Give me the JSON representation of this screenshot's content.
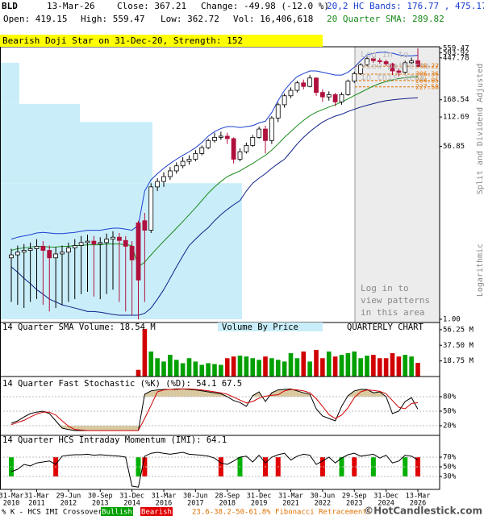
{
  "header": {
    "symbol": "BLD",
    "date": "13-Mar-26",
    "close": "Close: 367.21",
    "change": "Change: -49.98 (-12.0 %)",
    "bands": "20,2 HC Bands: 176.77 , 475.17",
    "open": "Open: 419.15",
    "high": "High: 559.47",
    "low": "Low: 362.72",
    "volume": "Vol: 16,406,618",
    "sma": "20 Quarter SMA: 289.82",
    "banner": "Bearish Doji Star on 31-Dec-20, Strength: 152"
  },
  "notice": [
    "Log in to",
    "view patterns",
    "in this area"
  ],
  "side_labels": [
    "Split and Dividend Adjusted",
    "Logarithmic"
  ],
  "footer": {
    "crossover": "% K - HCS IMI Crossover:",
    "bullish": "Bullish",
    "bearish": "Bearish",
    "fibonacci": "23.6-38.2-50-61.8% Fibonacci Retracements",
    "credit": "©HotCandlestick.com"
  },
  "chart_data": [
    {
      "type": "candlestick",
      "categories": [
        "31-Mar",
        null,
        null,
        null,
        "31-Mar",
        null,
        null,
        null,
        null,
        "29-Jun",
        null,
        null,
        null,
        null,
        "30-Sep",
        null,
        null,
        null,
        null,
        "31-Dec",
        null,
        null,
        null,
        null,
        "31-Mar",
        null,
        null,
        null,
        null,
        "30-Jun",
        null,
        null,
        null,
        null,
        "28-Sep",
        null,
        null,
        null,
        null,
        "31-Dec",
        null,
        null,
        null,
        null,
        "31-Mar",
        null,
        null,
        null,
        null,
        "30-Jun",
        null,
        null,
        null,
        null,
        "29-Sep",
        null,
        null,
        null,
        null,
        "31-Dec",
        null,
        null,
        null,
        null,
        "13-Mar"
      ],
      "category_years": [
        "2010",
        null,
        null,
        null,
        "2011",
        null,
        null,
        null,
        null,
        "2012",
        null,
        null,
        null,
        null,
        "2013",
        null,
        null,
        null,
        null,
        "2014",
        null,
        null,
        null,
        null,
        "2016",
        null,
        null,
        null,
        null,
        "2017",
        null,
        null,
        null,
        null,
        "2018",
        null,
        null,
        null,
        null,
        "2019",
        null,
        null,
        null,
        null,
        "2021",
        null,
        null,
        null,
        null,
        "2022",
        null,
        null,
        null,
        null,
        "2023",
        null,
        null,
        null,
        null,
        "2024",
        null,
        null,
        null,
        null,
        "2026"
      ],
      "open": [
        4.2,
        4.5,
        4.8,
        5.0,
        5.2,
        5.5,
        5.0,
        4.2,
        4.6,
        4.8,
        5.3,
        5.6,
        6.0,
        6.2,
        5.8,
        6.0,
        6.5,
        6.8,
        6.3,
        5.5,
        9.5,
        10,
        8,
        22,
        25,
        28,
        32,
        36,
        40,
        42,
        48,
        55,
        65,
        70,
        72,
        68,
        42,
        50,
        58,
        70,
        85,
        65,
        110,
        150,
        185,
        210,
        250,
        230,
        280,
        200,
        180,
        190,
        160,
        190,
        260,
        310,
        380,
        440,
        420,
        410,
        390,
        330,
        320,
        400,
        419.15
      ],
      "high": [
        5.2,
        5.6,
        5.8,
        6.0,
        6.5,
        6.2,
        5.6,
        5.4,
        5.6,
        6.0,
        6.5,
        7.0,
        7.2,
        7.0,
        6.8,
        7.4,
        7.8,
        7.5,
        7.0,
        6.2,
        10,
        12,
        24,
        27,
        31,
        35,
        39,
        44,
        46,
        52,
        58,
        68,
        78,
        80,
        78,
        70,
        54,
        62,
        74,
        90,
        92,
        115,
        158,
        195,
        225,
        262,
        270,
        300,
        285,
        215,
        205,
        198,
        200,
        270,
        325,
        395,
        460,
        455,
        445,
        430,
        400,
        350,
        420,
        450,
        559.47
      ],
      "low": [
        1.5,
        1.4,
        1.3,
        1.5,
        1.6,
        1.4,
        1.2,
        1.3,
        1.4,
        1.5,
        1.6,
        1.8,
        1.9,
        1.7,
        1.6,
        1.8,
        2.0,
        1.5,
        1.2,
        1.1,
        1.0,
        1.5,
        7.5,
        20,
        22,
        26,
        30,
        34,
        37,
        40,
        46,
        53,
        62,
        66,
        60,
        38,
        40,
        48,
        56,
        68,
        48,
        60,
        100,
        140,
        175,
        200,
        215,
        225,
        185,
        160,
        165,
        145,
        150,
        185,
        250,
        300,
        370,
        400,
        390,
        370,
        300,
        290,
        310,
        390,
        362.72
      ],
      "close": [
        4.5,
        4.8,
        5.0,
        5.2,
        5.5,
        5.0,
        4.2,
        4.6,
        4.8,
        5.3,
        5.6,
        6.0,
        6.2,
        5.8,
        6.0,
        6.5,
        6.8,
        6.3,
        5.5,
        4.0,
        2.5,
        8,
        22,
        25,
        28,
        32,
        36,
        40,
        42,
        48,
        55,
        65,
        70,
        72,
        68,
        42,
        50,
        58,
        70,
        85,
        65,
        110,
        150,
        185,
        210,
        250,
        230,
        280,
        200,
        180,
        190,
        160,
        190,
        260,
        310,
        380,
        440,
        420,
        410,
        390,
        330,
        320,
        400,
        417.19,
        367.21
      ],
      "up_color": "#ffffff",
      "down_color": "#b0103c",
      "ylim": [
        1,
        559.47
      ],
      "log_scale": true,
      "yticks": [
        559.47,
        503.92,
        447.78,
        168.54,
        112.69,
        56.85,
        {
          "value": 1,
          "label": "1.00"
        }
      ],
      "fib_levels": [
        368.22,
        306.36,
        264.05,
        227.58
      ],
      "fib_color": "#e07000",
      "overlays": [
        {
          "color": "#1a3fd0",
          "values": [
            6.5,
            6.8,
            7.0,
            7.2,
            7.5,
            7.6,
            7.5,
            7.4,
            7.4,
            7.5,
            7.6,
            7.8,
            8.0,
            8.0,
            8.0,
            8.2,
            8.4,
            8.4,
            8.2,
            8.0,
            9,
            20,
            26,
            30,
            34,
            38,
            42,
            46,
            50,
            55,
            62,
            72,
            80,
            86,
            90,
            90,
            88,
            90,
            92,
            98,
            102,
            125,
            165,
            210,
            250,
            290,
            310,
            330,
            330,
            320,
            310,
            300,
            300,
            320,
            360,
            420,
            480,
            500,
            510,
            510,
            500,
            480,
            470,
            470,
            475.17
          ]
        },
        {
          "color": "#10208a",
          "values": [
            3.4,
            3.0,
            2.6,
            2.3,
            2.0,
            1.8,
            1.6,
            1.5,
            1.4,
            1.35,
            1.3,
            1.25,
            1.2,
            1.2,
            1.18,
            1.15,
            1.12,
            1.1,
            1.1,
            1.1,
            1.1,
            1.15,
            1.3,
            1.6,
            2,
            2.6,
            3.4,
            4.4,
            5.6,
            6.5,
            7.5,
            8.5,
            10,
            11.5,
            13,
            14.5,
            16,
            20,
            24,
            27,
            30,
            34,
            38,
            42,
            50,
            60,
            70,
            80,
            90,
            100,
            108,
            115,
            120,
            128,
            135,
            142,
            148,
            154,
            160,
            165,
            168,
            171,
            173,
            175,
            176.77
          ]
        },
        {
          "color": "#1a8a1a",
          "values": [
            5.0,
            5.2,
            5.3,
            5.4,
            5.5,
            5.5,
            5.4,
            5.4,
            5.5,
            5.5,
            5.6,
            5.6,
            5.7,
            5.7,
            5.7,
            5.8,
            5.8,
            5.8,
            5.7,
            5.6,
            3.4,
            3.8,
            4.5,
            5.3,
            6.2,
            7.2,
            8.4,
            9.8,
            11.5,
            13.5,
            16,
            19,
            22,
            25,
            28,
            30,
            32,
            35,
            38,
            42,
            46,
            52,
            60,
            70,
            80,
            92,
            104,
            116,
            126,
            134,
            142,
            150,
            160,
            172,
            186,
            200,
            216,
            232,
            246,
            258,
            268,
            276,
            282,
            286,
            289.82
          ]
        }
      ],
      "volume_by_price": {
        "bins": [
          1,
          24,
          100,
          153,
          400
        ],
        "values": [
          100,
          63,
          33,
          8
        ],
        "color": "#c9eef9"
      }
    },
    {
      "type": "bar",
      "title": "14 Quarter SMA Volume: 18.54 M",
      "label": "Volume By Price",
      "chart_label": "QUARTERLY CHART",
      "values": [
        null,
        null,
        null,
        null,
        null,
        null,
        null,
        null,
        null,
        null,
        null,
        null,
        null,
        null,
        null,
        null,
        null,
        null,
        null,
        null,
        8,
        57,
        30,
        22,
        18,
        26,
        20,
        16,
        22,
        18,
        14,
        16,
        15,
        14,
        22,
        24,
        25,
        24,
        22,
        20,
        24,
        22,
        20,
        18,
        28,
        22,
        30,
        18,
        32,
        22,
        30,
        24,
        26,
        28,
        30,
        22,
        25,
        26,
        22,
        22,
        28,
        24,
        26,
        24,
        16.41
      ],
      "up_color": "#00a000",
      "down_color": "#d00000",
      "ylim": [
        0,
        60
      ],
      "yticks": [
        {
          "value": 56.25,
          "label": "56.25 M"
        },
        {
          "value": 37.5,
          "label": "37.50 M"
        },
        {
          "value": 18.75,
          "label": "18.75 M"
        }
      ]
    },
    {
      "type": "line",
      "title": "14 Quarter Fast Stochastic (%K) (%D): 54.1 67.5",
      "series": [
        {
          "color": "#000000",
          "values": [
            25,
            30,
            38,
            45,
            48,
            50,
            45,
            30,
            15,
            12,
            10,
            10,
            10,
            10,
            10,
            10,
            10,
            10,
            10,
            10,
            10,
            85,
            92,
            94,
            95,
            95,
            96,
            96,
            95,
            94,
            92,
            90,
            88,
            86,
            80,
            72,
            68,
            60,
            82,
            90,
            70,
            88,
            94,
            95,
            96,
            92,
            88,
            85,
            55,
            40,
            35,
            30,
            60,
            82,
            92,
            95,
            95,
            88,
            90,
            80,
            45,
            50,
            70,
            78,
            54.1
          ]
        },
        {
          "color": "#d00000",
          "values": [
            22,
            27,
            31,
            38,
            44,
            48,
            48,
            42,
            30,
            19,
            12,
            11,
            10,
            10,
            10,
            10,
            10,
            10,
            10,
            10,
            10,
            35,
            62,
            90,
            94,
            95,
            95,
            96,
            96,
            95,
            94,
            92,
            90,
            88,
            85,
            79,
            73,
            67,
            70,
            77,
            81,
            83,
            84,
            92,
            95,
            94,
            92,
            88,
            76,
            60,
            43,
            35,
            42,
            57,
            78,
            90,
            94,
            93,
            91,
            86,
            72,
            58,
            55,
            66,
            67.5
          ]
        }
      ],
      "zone_color": "#d9c9a0",
      "grid": true,
      "ylim": [
        0,
        100
      ],
      "yticks": [
        {
          "value": 80,
          "label": "80%"
        },
        {
          "value": 50,
          "label": "50%"
        },
        {
          "value": 20,
          "label": "20%"
        }
      ]
    },
    {
      "type": "line",
      "title": "14 Quarter HCS Intraday Momentum (IMI): 64.1",
      "series": [
        {
          "color": "#000000",
          "values": [
            40,
            45,
            55,
            52,
            58,
            60,
            62,
            55,
            72,
            74,
            75,
            75,
            76,
            74,
            75,
            74,
            73,
            72,
            70,
            10,
            8,
            72,
            78,
            80,
            78,
            76,
            78,
            80,
            76,
            75,
            74,
            72,
            68,
            58,
            55,
            62,
            70,
            72,
            60,
            74,
            58,
            70,
            75,
            78,
            64,
            72,
            76,
            74,
            55,
            62,
            70,
            58,
            68,
            75,
            78,
            72,
            74,
            76,
            68,
            74,
            58,
            62,
            74,
            72,
            64.1
          ]
        }
      ],
      "bullish": [
        0,
        20,
        36,
        52,
        57,
        62
      ],
      "bullish_color": "#00b000",
      "bearish": [
        7,
        21,
        33,
        40,
        42,
        49,
        54,
        64
      ],
      "bearish_color": "#e00000",
      "grid": true,
      "ylim": [
        0,
        100
      ],
      "yticks": [
        {
          "value": 70,
          "label": "70%"
        },
        {
          "value": 50,
          "label": "50%"
        },
        {
          "value": 30,
          "label": "30%"
        }
      ]
    }
  ]
}
